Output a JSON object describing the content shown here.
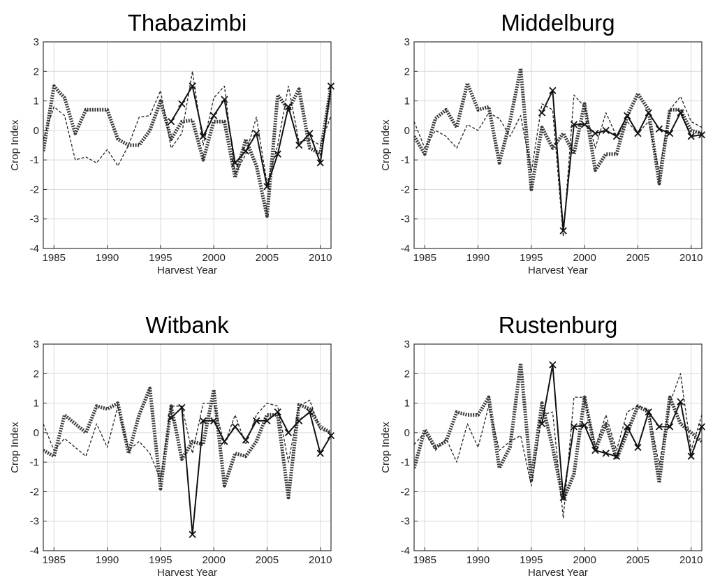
{
  "figure": {
    "style": {
      "heavy_dotted_color": "#3a3a3a",
      "solid_color": "#111111",
      "dashed_color": "#222222",
      "grid_color": "#d9d9d9",
      "axis_color": "#333333"
    }
  },
  "chart_data": [
    {
      "type": "line",
      "title": "Thabazimbi",
      "xlabel": "Harvest Year",
      "ylabel": "Crop Index",
      "xlim": [
        1984,
        2011
      ],
      "ylim": [
        -4,
        3
      ],
      "xticks": [
        1985,
        1990,
        1995,
        2000,
        2005,
        2010
      ],
      "yticks": [
        -4,
        -3,
        -2,
        -1,
        0,
        1,
        2,
        3
      ],
      "grid": true,
      "series": [
        {
          "style": "heavy-dotted",
          "x": [
            1984,
            1985,
            1986,
            1987,
            1988,
            1989,
            1990,
            1991,
            1992,
            1993,
            1994,
            1995,
            1996,
            1997,
            1998,
            1999,
            2000,
            2001,
            2002,
            2003,
            2004,
            2005,
            2006,
            2007,
            2008,
            2009,
            2010,
            2011
          ],
          "values": [
            -0.7,
            1.5,
            1.1,
            -0.1,
            0.7,
            0.7,
            0.7,
            -0.3,
            -0.5,
            -0.5,
            0.0,
            1.0,
            -0.3,
            0.3,
            0.35,
            -1.0,
            0.3,
            0.3,
            -1.6,
            -0.3,
            -1.2,
            -2.9,
            1.2,
            0.7,
            1.4,
            -0.6,
            -0.8,
            1.5
          ]
        },
        {
          "style": "solid-x",
          "x": [
            1996,
            1997,
            1998,
            1999,
            2000,
            2001,
            2002,
            2003,
            2004,
            2005,
            2006,
            2007,
            2008,
            2009,
            2010,
            2011
          ],
          "values": [
            0.3,
            0.9,
            1.5,
            -0.2,
            0.5,
            1.05,
            -1.1,
            -0.7,
            -0.1,
            -1.9,
            -0.8,
            0.8,
            -0.5,
            -0.1,
            -1.1,
            1.5
          ]
        },
        {
          "style": "dashed",
          "x": [
            1984,
            1985,
            1986,
            1987,
            1988,
            1989,
            1990,
            1991,
            1992,
            1993,
            1994,
            1995,
            1996,
            1997,
            1998,
            1999,
            2000,
            2001,
            2002,
            2003,
            2004,
            2005,
            2006,
            2007,
            2008,
            2009,
            2010,
            2011
          ],
          "values": [
            -0.3,
            0.8,
            0.5,
            -1.0,
            -0.9,
            -1.1,
            -0.65,
            -1.2,
            -0.5,
            0.45,
            0.5,
            1.35,
            -0.6,
            -0.1,
            2.0,
            -0.5,
            1.1,
            1.5,
            -1.5,
            -0.8,
            0.45,
            -1.8,
            -0.5,
            1.5,
            -0.4,
            -0.3,
            -0.5,
            0.5
          ]
        }
      ]
    },
    {
      "type": "line",
      "title": "Middelburg",
      "xlabel": "Harvest Year",
      "ylabel": "Crop Index",
      "xlim": [
        1984,
        2011
      ],
      "ylim": [
        -4,
        3
      ],
      "xticks": [
        1985,
        1990,
        1995,
        2000,
        2005,
        2010
      ],
      "yticks": [
        -4,
        -3,
        -2,
        -1,
        0,
        1,
        2,
        3
      ],
      "grid": true,
      "series": [
        {
          "style": "heavy-dotted",
          "x": [
            1984,
            1985,
            1986,
            1987,
            1988,
            1989,
            1990,
            1991,
            1992,
            1993,
            1994,
            1995,
            1996,
            1997,
            1998,
            1999,
            2000,
            2001,
            2002,
            2003,
            2004,
            2005,
            2006,
            2007,
            2008,
            2009,
            2010,
            2011
          ],
          "values": [
            -0.2,
            -0.8,
            0.4,
            0.7,
            0.1,
            1.6,
            0.7,
            0.8,
            -1.1,
            0.3,
            2.1,
            -2.0,
            0.1,
            -0.6,
            -0.1,
            -0.8,
            0.9,
            -1.35,
            -0.8,
            -0.8,
            0.5,
            1.25,
            0.7,
            -1.8,
            0.7,
            0.7,
            0.0,
            -0.1
          ]
        },
        {
          "style": "solid-x",
          "x": [
            1996,
            1997,
            1998,
            1999,
            2000,
            2001,
            2002,
            2003,
            2004,
            2005,
            2006,
            2007,
            2008,
            2009,
            2010,
            2011
          ],
          "values": [
            0.6,
            1.35,
            -3.4,
            0.2,
            0.2,
            -0.1,
            0.0,
            -0.2,
            0.5,
            -0.1,
            0.6,
            0.05,
            -0.1,
            0.6,
            -0.2,
            -0.15
          ]
        },
        {
          "style": "dashed",
          "x": [
            1984,
            1985,
            1986,
            1987,
            1988,
            1989,
            1990,
            1991,
            1992,
            1993,
            1994,
            1995,
            1996,
            1997,
            1998,
            1999,
            2000,
            2001,
            2002,
            2003,
            2004,
            2005,
            2006,
            2007,
            2008,
            2009,
            2010,
            2011
          ],
          "values": [
            0.3,
            -0.6,
            0.0,
            -0.2,
            -0.6,
            0.2,
            0.0,
            0.6,
            0.4,
            -0.2,
            0.5,
            -1.4,
            0.9,
            0.7,
            -3.6,
            1.2,
            0.8,
            -0.6,
            0.6,
            -0.2,
            0.3,
            -0.1,
            0.3,
            -1.4,
            0.7,
            1.15,
            0.3,
            0.1
          ]
        }
      ]
    },
    {
      "type": "line",
      "title": "Witbank",
      "xlabel": "Harvest Year",
      "ylabel": "Crop Index",
      "xlim": [
        1984,
        2011
      ],
      "ylim": [
        -4,
        3
      ],
      "xticks": [
        1985,
        1990,
        1995,
        2000,
        2005,
        2010
      ],
      "yticks": [
        -4,
        -3,
        -2,
        -1,
        0,
        1,
        2,
        3
      ],
      "grid": true,
      "series": [
        {
          "style": "heavy-dotted",
          "x": [
            1984,
            1985,
            1986,
            1987,
            1988,
            1989,
            1990,
            1991,
            1992,
            1993,
            1994,
            1995,
            1996,
            1997,
            1998,
            1999,
            2000,
            2001,
            2002,
            2003,
            2004,
            2005,
            2006,
            2007,
            2008,
            2009,
            2010,
            2011
          ],
          "values": [
            -0.6,
            -0.8,
            0.6,
            0.3,
            0.0,
            0.9,
            0.8,
            1.0,
            -0.7,
            0.6,
            1.5,
            -1.9,
            0.9,
            -0.9,
            -0.3,
            -0.4,
            1.45,
            -1.8,
            -0.7,
            -0.8,
            -0.3,
            0.6,
            0.6,
            -2.2,
            0.95,
            0.8,
            0.2,
            0.0
          ]
        },
        {
          "style": "solid-x",
          "x": [
            1996,
            1997,
            1998,
            1999,
            2000,
            2001,
            2002,
            2003,
            2004,
            2005,
            2006,
            2007,
            2008,
            2009,
            2010,
            2011
          ],
          "values": [
            0.5,
            0.85,
            -3.45,
            0.4,
            0.4,
            -0.3,
            0.2,
            -0.25,
            0.4,
            0.4,
            0.7,
            0.0,
            0.4,
            0.7,
            -0.7,
            -0.1
          ]
        },
        {
          "style": "dashed",
          "x": [
            1984,
            1985,
            1986,
            1987,
            1988,
            1989,
            1990,
            1991,
            1992,
            1993,
            1994,
            1995,
            1996,
            1997,
            1998,
            1999,
            2000,
            2001,
            2002,
            2003,
            2004,
            2005,
            2006,
            2007,
            2008,
            2009,
            2010,
            2011
          ],
          "values": [
            0.3,
            -0.6,
            -0.2,
            -0.5,
            -0.8,
            0.3,
            -0.5,
            0.9,
            -0.6,
            -0.3,
            -0.7,
            -1.6,
            0.9,
            0.9,
            -0.7,
            1.0,
            1.0,
            -0.4,
            0.6,
            -0.4,
            0.6,
            1.0,
            0.9,
            -1.0,
            0.9,
            1.1,
            0.1,
            0.0
          ]
        }
      ]
    },
    {
      "type": "line",
      "title": "Rustenburg",
      "xlabel": "Harvest Year",
      "ylabel": "Crop Index",
      "xlim": [
        1984,
        2011
      ],
      "ylim": [
        -4,
        3
      ],
      "xticks": [
        1985,
        1990,
        1995,
        2000,
        2005,
        2010
      ],
      "yticks": [
        -4,
        -3,
        -2,
        -1,
        0,
        1,
        2,
        3
      ],
      "grid": true,
      "series": [
        {
          "style": "heavy-dotted",
          "x": [
            1984,
            1985,
            1986,
            1987,
            1988,
            1989,
            1990,
            1991,
            1992,
            1993,
            1994,
            1995,
            1996,
            1997,
            1998,
            1999,
            2000,
            2001,
            2002,
            2003,
            2004,
            2005,
            2006,
            2007,
            2008,
            2009,
            2010,
            2011
          ],
          "values": [
            -1.2,
            0.1,
            -0.5,
            -0.3,
            0.7,
            0.6,
            0.6,
            1.2,
            -1.2,
            -0.5,
            2.35,
            -1.6,
            1.0,
            -0.5,
            -2.3,
            -1.4,
            1.2,
            -0.6,
            0.3,
            -0.9,
            0.0,
            0.9,
            0.7,
            -1.7,
            1.2,
            0.3,
            0.0,
            -0.3
          ]
        },
        {
          "style": "solid-x",
          "x": [
            1996,
            1997,
            1998,
            1999,
            2000,
            2001,
            2002,
            2003,
            2004,
            2005,
            2006,
            2007,
            2008,
            2009,
            2010,
            2011
          ],
          "values": [
            0.3,
            2.3,
            -2.2,
            0.2,
            0.25,
            -0.6,
            -0.7,
            -0.8,
            0.2,
            -0.5,
            0.7,
            0.2,
            0.2,
            1.05,
            -0.8,
            0.2
          ]
        },
        {
          "style": "dashed",
          "x": [
            1984,
            1985,
            1986,
            1987,
            1988,
            1989,
            1990,
            1991,
            1992,
            1993,
            1994,
            1995,
            1996,
            1997,
            1998,
            1999,
            2000,
            2001,
            2002,
            2003,
            2004,
            2005,
            2006,
            2007,
            2008,
            2009,
            2010,
            2011
          ],
          "values": [
            -0.4,
            0.0,
            -0.6,
            -0.2,
            -1.0,
            0.3,
            -0.5,
            0.9,
            -0.6,
            -0.3,
            -0.1,
            -1.8,
            0.6,
            0.7,
            -2.9,
            1.2,
            1.2,
            -0.5,
            0.6,
            -0.6,
            0.7,
            0.9,
            0.8,
            -1.1,
            1.0,
            2.0,
            -0.6,
            0.6
          ]
        }
      ]
    }
  ]
}
